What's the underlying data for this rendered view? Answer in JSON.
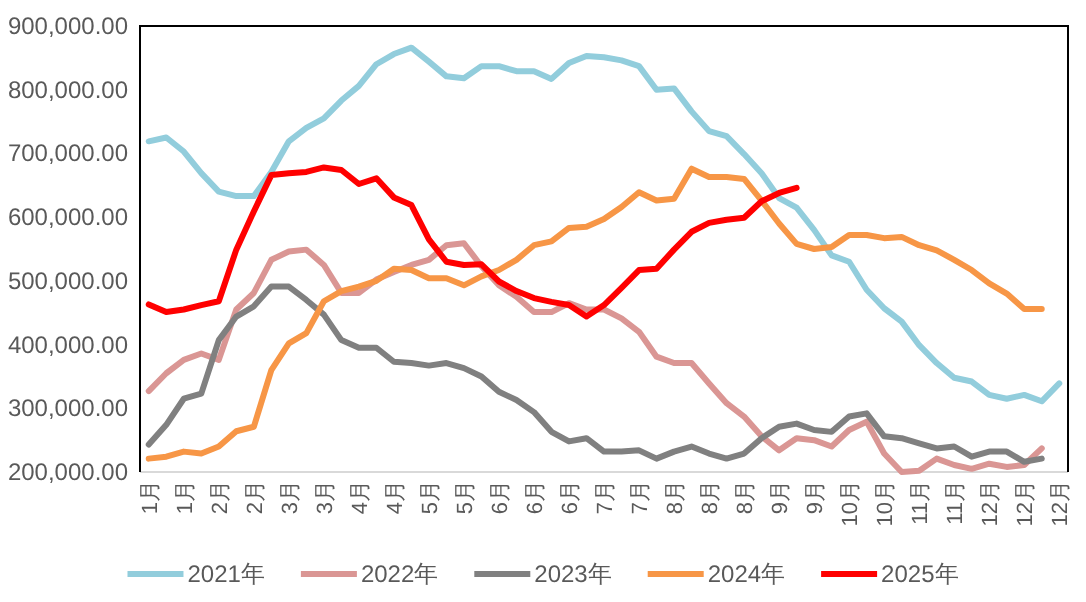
{
  "chart_data": {
    "type": "line",
    "categories": [
      "1月",
      null,
      "1月",
      null,
      "2月",
      null,
      "2月",
      null,
      "3月",
      null,
      "3月",
      null,
      "4月",
      null,
      "4月",
      null,
      "5月",
      null,
      "5月",
      null,
      "6月",
      null,
      "6月",
      null,
      "6月",
      null,
      "7月",
      null,
      "7月",
      null,
      "8月",
      null,
      "8月",
      null,
      "8月",
      null,
      "9月",
      null,
      "9月",
      null,
      "10月",
      null,
      "10月",
      null,
      "11月",
      null,
      "11月",
      null,
      "12月",
      null,
      "12月",
      null,
      "12月"
    ],
    "series": [
      {
        "name": "2021年",
        "color": "#92cddc",
        "values": [
          719000,
          725000,
          703000,
          669000,
          640000,
          633000,
          633000,
          671000,
          719000,
          740000,
          755000,
          783000,
          806000,
          840000,
          856000,
          866000,
          844000,
          821000,
          818000,
          837000,
          837000,
          829000,
          829000,
          817000,
          842000,
          853000,
          851000,
          846000,
          837000,
          800000,
          802000,
          766000,
          735000,
          727000,
          699000,
          669000,
          630000,
          615000,
          580000,
          540000,
          530000,
          486000,
          457000,
          436000,
          399000,
          371000,
          348000,
          342000,
          321000,
          315000,
          321000,
          311000,
          339000
        ]
      },
      {
        "name": "2022年",
        "color": "#da9694",
        "values": [
          327000,
          355000,
          376000,
          386000,
          376000,
          455000,
          481000,
          533000,
          546000,
          549000,
          525000,
          481000,
          481000,
          502000,
          514000,
          525000,
          533000,
          556000,
          559000,
          523000,
          493000,
          475000,
          451000,
          451000,
          465000,
          455000,
          455000,
          441000,
          420000,
          381000,
          371000,
          371000,
          339000,
          308000,
          287000,
          256000,
          234000,
          253000,
          250000,
          240000,
          266000,
          279000,
          229000,
          200000,
          202000,
          221000,
          211000,
          205000,
          213000,
          208000,
          211000,
          237000,
          null
        ]
      },
      {
        "name": "2023年",
        "color": "#808080",
        "values": [
          243000,
          274000,
          315000,
          323000,
          407000,
          444000,
          460000,
          491000,
          491000,
          470000,
          447000,
          407000,
          395000,
          395000,
          373000,
          371000,
          367000,
          371000,
          363000,
          350000,
          326000,
          313000,
          294000,
          263000,
          248000,
          253000,
          232000,
          232000,
          234000,
          221000,
          232000,
          240000,
          229000,
          221000,
          229000,
          253000,
          271000,
          276000,
          266000,
          263000,
          287000,
          292000,
          256000,
          253000,
          245000,
          237000,
          240000,
          224000,
          232000,
          232000,
          216000,
          221000,
          null
        ]
      },
      {
        "name": "2024年",
        "color": "#f79646",
        "values": [
          221000,
          224000,
          232000,
          229000,
          240000,
          264000,
          271000,
          360000,
          402000,
          418000,
          468000,
          484000,
          491000,
          500000,
          519000,
          517000,
          504000,
          504000,
          493000,
          507000,
          517000,
          533000,
          556000,
          562000,
          583000,
          585000,
          597000,
          616000,
          639000,
          626000,
          629000,
          676000,
          663000,
          663000,
          660000,
          626000,
          590000,
          558000,
          550000,
          553000,
          572000,
          572000,
          567000,
          569000,
          556000,
          548000,
          533000,
          517000,
          496000,
          480000,
          456000,
          456000,
          null
        ]
      },
      {
        "name": "2025年",
        "color": "#ff0000",
        "values": [
          463000,
          451000,
          455000,
          462000,
          468000,
          549000,
          609000,
          666000,
          669000,
          671000,
          678000,
          674000,
          652000,
          661000,
          631000,
          619000,
          565000,
          530000,
          525000,
          526000,
          499000,
          484000,
          473000,
          467000,
          462000,
          444000,
          462000,
          489000,
          517000,
          519000,
          549000,
          577000,
          591000,
          596000,
          599000,
          625000,
          638000,
          646000,
          null,
          null,
          null,
          null,
          null,
          null,
          null,
          null,
          null,
          null,
          null,
          null,
          null,
          null,
          null
        ]
      }
    ],
    "ylim": [
      200000,
      900000
    ],
    "yticks": [
      {
        "value": 200000,
        "label": "200,000.00"
      },
      {
        "value": 300000,
        "label": "300,000.00"
      },
      {
        "value": 400000,
        "label": "400,000.00"
      },
      {
        "value": 500000,
        "label": "500,000.00"
      },
      {
        "value": 600000,
        "label": "600,000.00"
      },
      {
        "value": 700000,
        "label": "700,000.00"
      },
      {
        "value": 800000,
        "label": "800,000.00"
      },
      {
        "value": 900000,
        "label": "900,000.00"
      }
    ],
    "legend": "bottom"
  }
}
